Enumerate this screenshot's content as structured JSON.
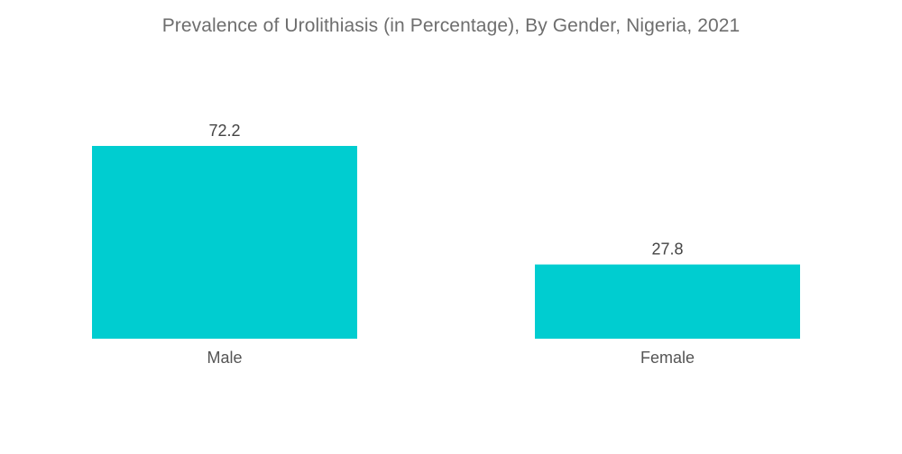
{
  "chart_data": {
    "type": "bar",
    "title": "Prevalence of Urolithiasis (in Percentage), By Gender, Nigeria, 2021",
    "categories": [
      "Male",
      "Female"
    ],
    "values": [
      72.2,
      27.8
    ],
    "value_labels": [
      "72.2",
      "27.8"
    ],
    "xlabel": "",
    "ylabel": "",
    "ylim": [
      0,
      72.2
    ],
    "grid": false,
    "legend": "none",
    "bar_color": "#00cdd0"
  }
}
